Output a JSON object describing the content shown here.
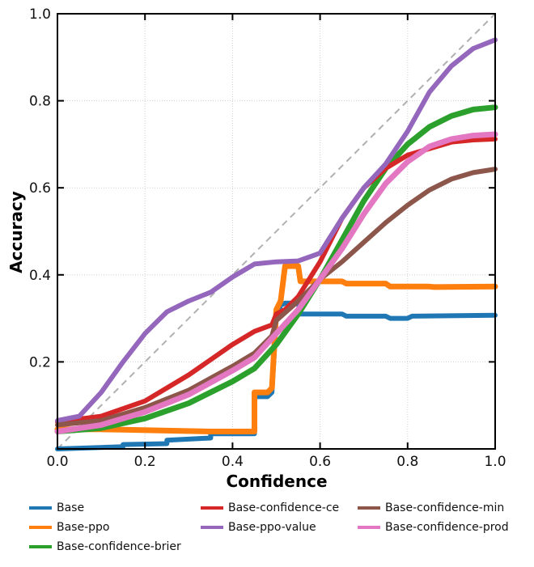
{
  "chart_data": {
    "type": "line",
    "title": "",
    "xlabel": "Confidence",
    "ylabel": "Accuracy",
    "xlim": [
      0.0,
      1.0
    ],
    "ylim": [
      0.0,
      1.0
    ],
    "xticks": [
      "0.0",
      "0.2",
      "0.4",
      "0.6",
      "0.8",
      "1.0"
    ],
    "yticks": [
      "0.2",
      "0.4",
      "0.6",
      "0.8",
      "1.0"
    ],
    "grid": true,
    "legend_position": "bottom",
    "reference_line": {
      "name": "perfect-calibration",
      "style": "dashed",
      "color": "#b0b0b0",
      "points": [
        [
          0,
          0
        ],
        [
          1,
          1
        ]
      ]
    },
    "series": [
      {
        "name": "Base",
        "color": "#1f77b4",
        "points": [
          [
            0.0,
            0.0
          ],
          [
            0.15,
            0.005
          ],
          [
            0.15,
            0.01
          ],
          [
            0.25,
            0.012
          ],
          [
            0.25,
            0.02
          ],
          [
            0.35,
            0.025
          ],
          [
            0.35,
            0.035
          ],
          [
            0.45,
            0.035
          ],
          [
            0.45,
            0.12
          ],
          [
            0.48,
            0.12
          ],
          [
            0.49,
            0.13
          ],
          [
            0.5,
            0.3
          ],
          [
            0.51,
            0.33
          ],
          [
            0.52,
            0.335
          ],
          [
            0.55,
            0.335
          ],
          [
            0.555,
            0.31
          ],
          [
            0.65,
            0.31
          ],
          [
            0.66,
            0.305
          ],
          [
            0.75,
            0.305
          ],
          [
            0.76,
            0.3
          ],
          [
            0.8,
            0.3
          ],
          [
            0.81,
            0.305
          ],
          [
            1.0,
            0.307
          ]
        ]
      },
      {
        "name": "Base-ppo",
        "color": "#ff7f0e",
        "points": [
          [
            0.0,
            0.045
          ],
          [
            0.1,
            0.045
          ],
          [
            0.15,
            0.044
          ],
          [
            0.25,
            0.042
          ],
          [
            0.35,
            0.04
          ],
          [
            0.45,
            0.04
          ],
          [
            0.45,
            0.13
          ],
          [
            0.48,
            0.13
          ],
          [
            0.49,
            0.14
          ],
          [
            0.5,
            0.32
          ],
          [
            0.51,
            0.34
          ],
          [
            0.52,
            0.42
          ],
          [
            0.55,
            0.42
          ],
          [
            0.555,
            0.385
          ],
          [
            0.65,
            0.385
          ],
          [
            0.66,
            0.38
          ],
          [
            0.75,
            0.38
          ],
          [
            0.76,
            0.373
          ],
          [
            0.85,
            0.373
          ],
          [
            0.86,
            0.372
          ],
          [
            1.0,
            0.373
          ]
        ]
      },
      {
        "name": "Base-confidence-brier",
        "color": "#2ca02c",
        "points": [
          [
            0.0,
            0.04
          ],
          [
            0.1,
            0.048
          ],
          [
            0.2,
            0.07
          ],
          [
            0.3,
            0.105
          ],
          [
            0.4,
            0.155
          ],
          [
            0.45,
            0.185
          ],
          [
            0.5,
            0.24
          ],
          [
            0.55,
            0.31
          ],
          [
            0.6,
            0.39
          ],
          [
            0.65,
            0.48
          ],
          [
            0.7,
            0.57
          ],
          [
            0.75,
            0.645
          ],
          [
            0.8,
            0.7
          ],
          [
            0.85,
            0.74
          ],
          [
            0.9,
            0.765
          ],
          [
            0.95,
            0.78
          ],
          [
            1.0,
            0.785
          ]
        ]
      },
      {
        "name": "Base-confidence-ce",
        "color": "#d62728",
        "points": [
          [
            0.0,
            0.062
          ],
          [
            0.1,
            0.075
          ],
          [
            0.2,
            0.11
          ],
          [
            0.3,
            0.17
          ],
          [
            0.4,
            0.24
          ],
          [
            0.45,
            0.27
          ],
          [
            0.49,
            0.285
          ],
          [
            0.5,
            0.31
          ],
          [
            0.52,
            0.32
          ],
          [
            0.55,
            0.35
          ],
          [
            0.6,
            0.43
          ],
          [
            0.65,
            0.53
          ],
          [
            0.7,
            0.6
          ],
          [
            0.75,
            0.645
          ],
          [
            0.8,
            0.675
          ],
          [
            0.85,
            0.69
          ],
          [
            0.9,
            0.705
          ],
          [
            0.95,
            0.71
          ],
          [
            1.0,
            0.712
          ]
        ]
      },
      {
        "name": "Base-ppo-value",
        "color": "#9467bd",
        "points": [
          [
            0.0,
            0.065
          ],
          [
            0.05,
            0.075
          ],
          [
            0.1,
            0.13
          ],
          [
            0.15,
            0.2
          ],
          [
            0.2,
            0.265
          ],
          [
            0.25,
            0.315
          ],
          [
            0.3,
            0.34
          ],
          [
            0.35,
            0.36
          ],
          [
            0.4,
            0.395
          ],
          [
            0.45,
            0.425
          ],
          [
            0.5,
            0.43
          ],
          [
            0.55,
            0.432
          ],
          [
            0.6,
            0.45
          ],
          [
            0.65,
            0.53
          ],
          [
            0.7,
            0.6
          ],
          [
            0.75,
            0.655
          ],
          [
            0.8,
            0.73
          ],
          [
            0.85,
            0.82
          ],
          [
            0.9,
            0.88
          ],
          [
            0.95,
            0.92
          ],
          [
            1.0,
            0.94
          ]
        ]
      },
      {
        "name": "Base-confidence-min",
        "color": "#8c564b",
        "points": [
          [
            0.0,
            0.055
          ],
          [
            0.1,
            0.065
          ],
          [
            0.2,
            0.095
          ],
          [
            0.3,
            0.135
          ],
          [
            0.4,
            0.19
          ],
          [
            0.45,
            0.22
          ],
          [
            0.49,
            0.26
          ],
          [
            0.5,
            0.295
          ],
          [
            0.55,
            0.34
          ],
          [
            0.6,
            0.39
          ],
          [
            0.65,
            0.43
          ],
          [
            0.7,
            0.475
          ],
          [
            0.75,
            0.52
          ],
          [
            0.8,
            0.56
          ],
          [
            0.85,
            0.595
          ],
          [
            0.9,
            0.62
          ],
          [
            0.95,
            0.635
          ],
          [
            1.0,
            0.643
          ]
        ]
      },
      {
        "name": "Base-confidence-prod",
        "color": "#e377c2",
        "points": [
          [
            0.0,
            0.04
          ],
          [
            0.1,
            0.055
          ],
          [
            0.2,
            0.085
          ],
          [
            0.3,
            0.125
          ],
          [
            0.4,
            0.18
          ],
          [
            0.45,
            0.21
          ],
          [
            0.5,
            0.265
          ],
          [
            0.55,
            0.32
          ],
          [
            0.6,
            0.39
          ],
          [
            0.65,
            0.46
          ],
          [
            0.7,
            0.54
          ],
          [
            0.75,
            0.61
          ],
          [
            0.8,
            0.66
          ],
          [
            0.85,
            0.695
          ],
          [
            0.9,
            0.712
          ],
          [
            0.95,
            0.72
          ],
          [
            1.0,
            0.723
          ]
        ]
      }
    ]
  },
  "legend": {
    "items": [
      {
        "label": "Base",
        "color": "#1f77b4"
      },
      {
        "label": "Base-ppo",
        "color": "#ff7f0e"
      },
      {
        "label": "Base-confidence-brier",
        "color": "#2ca02c"
      },
      {
        "label": "Base-confidence-ce",
        "color": "#d62728"
      },
      {
        "label": "Base-ppo-value",
        "color": "#9467bd"
      },
      {
        "label": "Base-confidence-min",
        "color": "#8c564b"
      },
      {
        "label": "Base-confidence-prod",
        "color": "#e377c2"
      }
    ]
  }
}
